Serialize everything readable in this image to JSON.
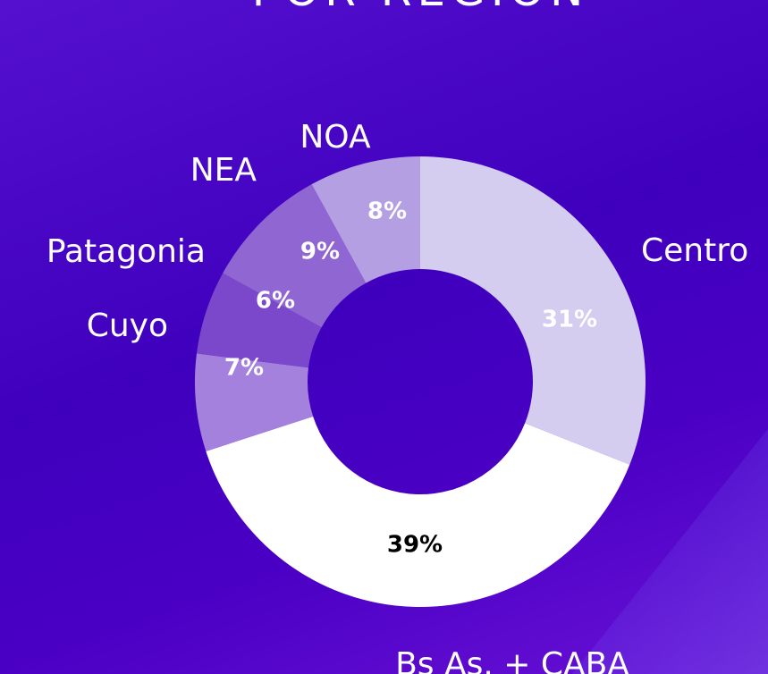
{
  "chart_data": {
    "type": "donut",
    "title": "POR REGIÓN",
    "categories": [
      "Centro",
      "Bs As. + CABA",
      "Cuyo",
      "Patagonia",
      "NEA",
      "NOA"
    ],
    "values": [
      31,
      39,
      7,
      6,
      9,
      8
    ],
    "value_labels": [
      "31%",
      "39%",
      "7%",
      "6%",
      "9%",
      "8%"
    ],
    "colors": [
      "#d4cdf0",
      "#ffffff",
      "#a381dc",
      "#7b47cb",
      "#9066d3",
      "#b49fe2"
    ],
    "label_colors": [
      "#ffffff",
      "#000000",
      "#ffffff",
      "#ffffff",
      "#ffffff",
      "#ffffff"
    ]
  }
}
